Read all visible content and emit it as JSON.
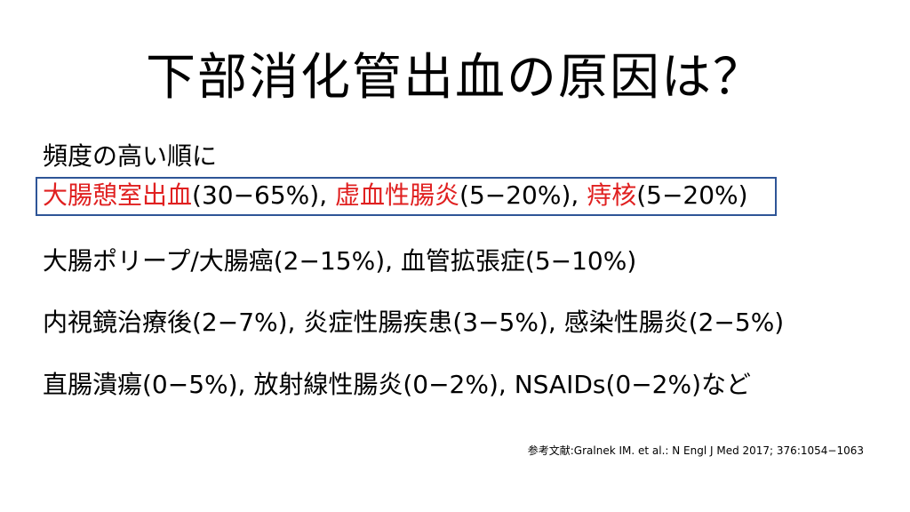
{
  "title": "下部消化管出血の原因は？",
  "subtitle": "頻度の高い順に",
  "highlight_line": {
    "cause1": "大腸憩室出血",
    "cause1_pct": "(30−65%), ",
    "cause2": "虚血性腸炎",
    "cause2_pct": "(5−20%), ",
    "cause3": "痔核",
    "cause3_pct": "(5−20%)",
    "accent_color": "#e02020",
    "box_color": "#2e5597"
  },
  "lines": [
    "大腸ポリープ/大腸癌(2−15%), 血管拡張症(5−10%)",
    "内視鏡治療後(2−7%), 炎症性腸疾患(3−5%), 感染性腸炎(2−5%)",
    "直腸潰瘍(0−5%), 放射線性腸炎(0−2%), NSAIDs(0−2%)など"
  ],
  "reference": "参考文献:Gralnek IM. et al.: N Engl J Med 2017; 376:1054−1063"
}
